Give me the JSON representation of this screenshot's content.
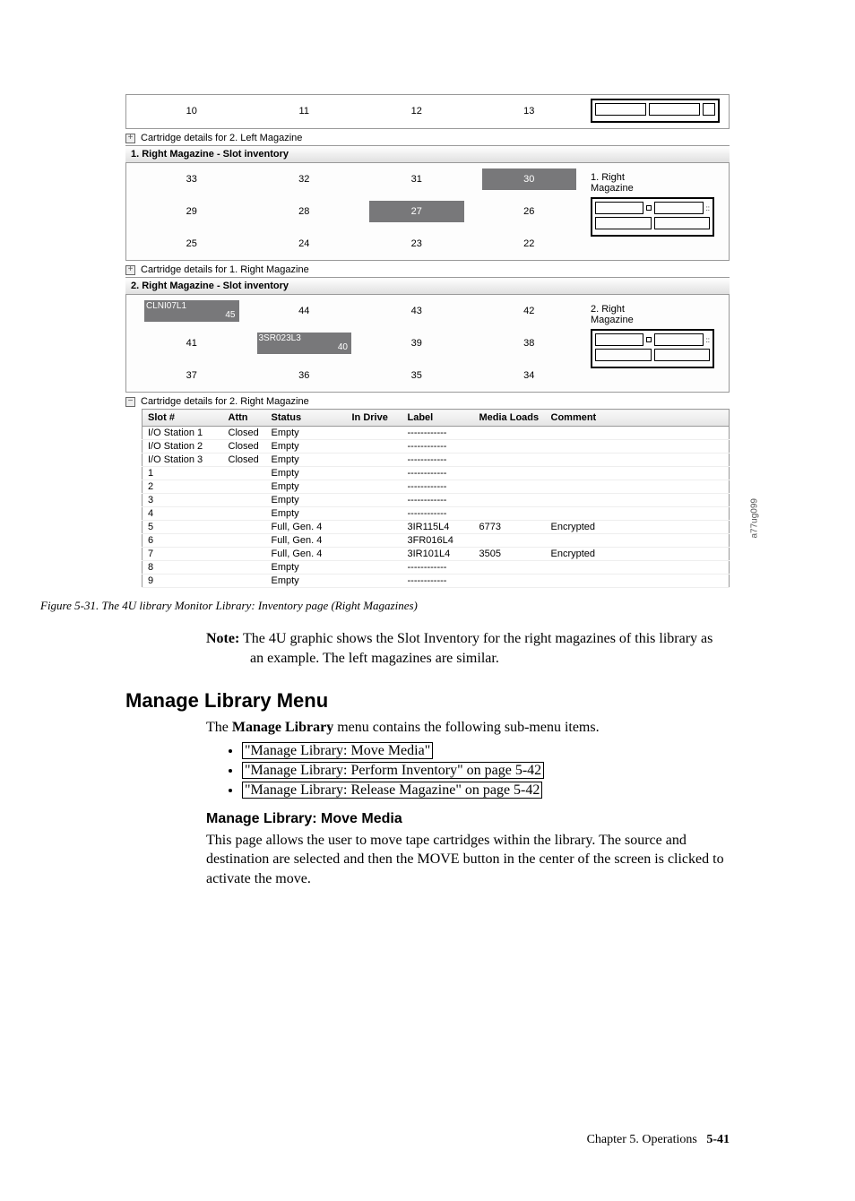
{
  "top_row": {
    "nums": [
      "10",
      "11",
      "12",
      "13"
    ]
  },
  "expander_left2": "Cartridge details for 2. Left Magazine",
  "right1_header": "1. Right Magazine - Slot inventory",
  "right1_slots": {
    "cells": [
      {
        "n": "33"
      },
      {
        "n": "32"
      },
      {
        "n": "31"
      },
      {
        "n": "30",
        "hl": true
      },
      {
        "n": "29"
      },
      {
        "n": "28"
      },
      {
        "n": "27",
        "hl": true
      },
      {
        "n": "26"
      },
      {
        "n": "25"
      },
      {
        "n": "24"
      },
      {
        "n": "23"
      },
      {
        "n": "22"
      }
    ],
    "legend_title": "1. Right\nMagazine"
  },
  "expander_right1": "Cartridge details for 1. Right Magazine",
  "right2_header": "2. Right Magazine - Slot inventory",
  "right2_slots": {
    "cells": [
      {
        "label": "CLNI07L1",
        "n": "45",
        "hl": true
      },
      {
        "n": "44"
      },
      {
        "n": "43"
      },
      {
        "n": "42"
      },
      {
        "n": "41"
      },
      {
        "label": "3SR023L3",
        "n": "40",
        "hl": true
      },
      {
        "n": "39"
      },
      {
        "n": "38"
      },
      {
        "n": "37"
      },
      {
        "n": "36"
      },
      {
        "n": "35"
      },
      {
        "n": "34"
      }
    ],
    "legend_title": "2. Right\nMagazine"
  },
  "expander_right2": "Cartridge details for 2. Right Magazine",
  "details_table": {
    "columns": [
      "Slot #",
      "Attn",
      "Status",
      "In Drive",
      "Label",
      "Media Loads",
      "Comment"
    ],
    "rows": [
      [
        "I/O Station 1",
        "Closed",
        "Empty",
        "",
        "------------",
        "",
        ""
      ],
      [
        "I/O Station 2",
        "Closed",
        "Empty",
        "",
        "------------",
        "",
        ""
      ],
      [
        "I/O Station 3",
        "Closed",
        "Empty",
        "",
        "------------",
        "",
        ""
      ],
      [
        "1",
        "",
        "Empty",
        "",
        "------------",
        "",
        ""
      ],
      [
        "2",
        "",
        "Empty",
        "",
        "------------",
        "",
        ""
      ],
      [
        "3",
        "",
        "Empty",
        "",
        "------------",
        "",
        ""
      ],
      [
        "4",
        "",
        "Empty",
        "",
        "------------",
        "",
        ""
      ],
      [
        "5",
        "",
        "Full, Gen. 4",
        "",
        "3IR115L4",
        "6773",
        "Encrypted"
      ],
      [
        "6",
        "",
        "Full, Gen. 4",
        "",
        "3FR016L4",
        "",
        ""
      ],
      [
        "7",
        "",
        "Full, Gen. 4",
        "",
        "3IR101L4",
        "3505",
        "Encrypted"
      ],
      [
        "8",
        "",
        "Empty",
        "",
        "------------",
        "",
        ""
      ],
      [
        "9",
        "",
        "Empty",
        "",
        "------------",
        "",
        ""
      ]
    ]
  },
  "vert_code": "a77ug099",
  "caption": "Figure 5-31. The 4U library Monitor Library: Inventory page (Right Magazines)",
  "note_label": "Note:",
  "note_text": "The 4U graphic shows the Slot Inventory for the right magazines of this library as an example. The left magazines are similar.",
  "h2": "Manage Library Menu",
  "intro": "The ",
  "intro_bold": "Manage Library",
  "intro_rest": " menu contains the following sub-menu items.",
  "links": [
    "\"Manage Library: Move Media\"",
    "\"Manage Library: Perform Inventory\" on page 5-42",
    "\"Manage Library: Release Magazine\" on page 5-42"
  ],
  "h3": "Manage Library: Move Media",
  "para": "This page allows the user to move tape cartridges within the library. The source and destination are selected and then the MOVE button in the center of the screen is clicked to activate the move.",
  "footer_chapter": "Chapter 5. Operations",
  "footer_page": "5-41"
}
